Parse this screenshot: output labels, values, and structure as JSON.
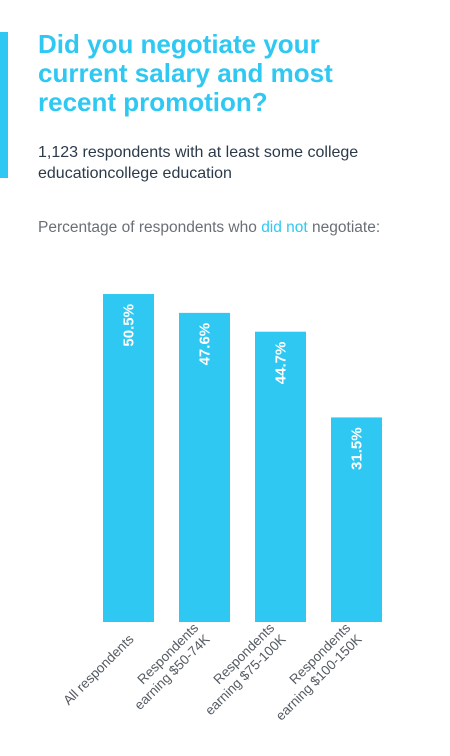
{
  "colors": {
    "accent": "#2ec8f2",
    "bar": "#2ec8f2",
    "bar_label": "#ffffff",
    "heading": "#2ec8f2",
    "subtitle": "#2b3a4a",
    "caption": "#6a6f76",
    "axis_label": "#555b62"
  },
  "header": {
    "title_lines": [
      "Did you negotiate your",
      "current salary and most",
      "recent promotion?"
    ],
    "subtitle_lines": [
      "1,123 respondents with at least some college",
      "educationcollege education"
    ]
  },
  "caption": {
    "before": "Percentage of respondents who ",
    "highlight": "did not",
    "after": " negotiate:"
  },
  "chart_data": {
    "type": "bar",
    "orientation": "vertical",
    "categories": [
      [
        "All respondents"
      ],
      [
        "Respondents",
        "earning $50-74K"
      ],
      [
        "Respondents",
        "earning $75-100K"
      ],
      [
        "Respondents",
        "earning $100-150K"
      ]
    ],
    "values": [
      50.5,
      47.6,
      44.7,
      31.5
    ],
    "data_labels": [
      "50.5%",
      "47.6%",
      "44.7%",
      "31.5%"
    ],
    "unit": "%",
    "ylim": [
      0,
      54.2
    ],
    "grid": false,
    "legend": "none",
    "data_label_position": "inside-top-rotated",
    "tick_label_rotation": -45
  }
}
